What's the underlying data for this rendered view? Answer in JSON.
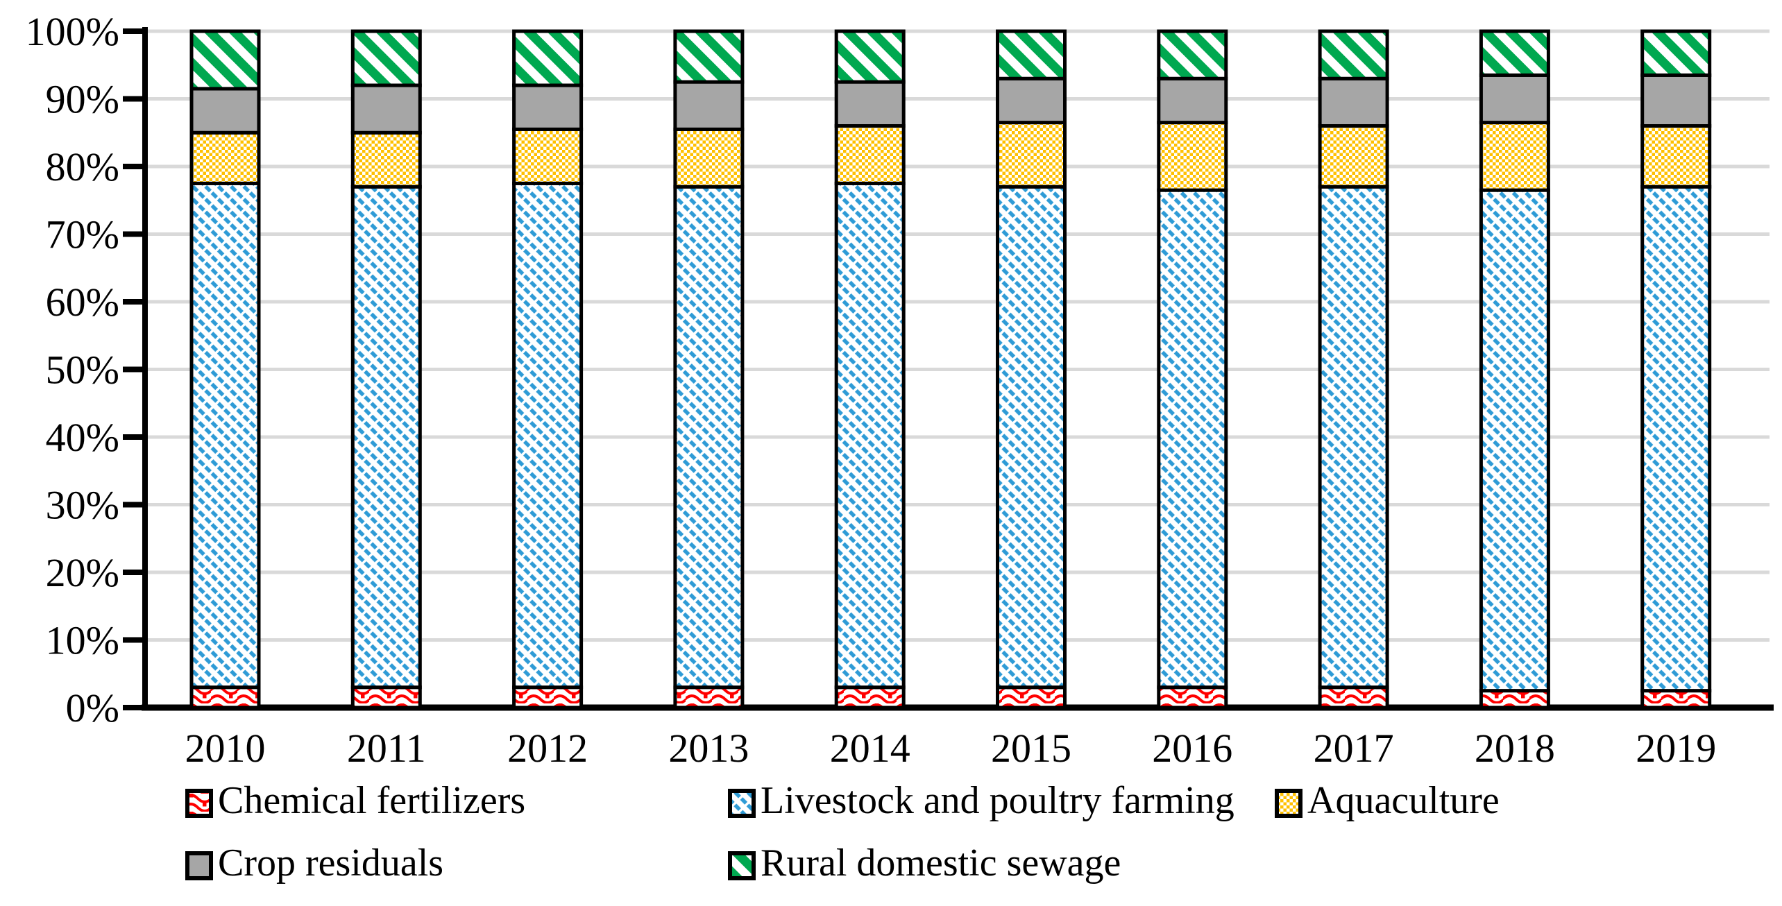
{
  "chart_data": {
    "type": "bar",
    "subtype": "100-percent-stacked",
    "title": "",
    "xlabel": "",
    "ylabel": "",
    "categories": [
      "2010",
      "2011",
      "2012",
      "2013",
      "2014",
      "2015",
      "2016",
      "2017",
      "2018",
      "2019"
    ],
    "series": [
      {
        "name": "Chemical fertilizers",
        "pattern": "red-wave",
        "color": "#FF0000",
        "values": [
          3.0,
          3.0,
          3.0,
          3.0,
          3.0,
          3.0,
          3.0,
          3.0,
          2.5,
          2.5
        ]
      },
      {
        "name": "Livestock and poultry farming",
        "pattern": "blue-diagonal",
        "color": "#2E9BD6",
        "values": [
          74.5,
          74.0,
          74.5,
          74.0,
          74.5,
          74.0,
          73.5,
          74.0,
          74.0,
          74.5
        ]
      },
      {
        "name": "Aquaculture",
        "pattern": "gold-checker",
        "color": "#FFC000",
        "values": [
          7.5,
          8.0,
          8.0,
          8.5,
          8.5,
          9.5,
          10.0,
          9.0,
          10.0,
          9.0
        ]
      },
      {
        "name": "Crop residuals",
        "pattern": "gray-solid",
        "color": "#A6A6A6",
        "values": [
          6.5,
          7.0,
          6.5,
          7.0,
          6.5,
          6.5,
          6.5,
          7.0,
          7.0,
          7.5
        ]
      },
      {
        "name": "Rural domestic sewage",
        "pattern": "green-diagonal",
        "color": "#00A850",
        "values": [
          8.5,
          8.0,
          8.0,
          7.5,
          7.5,
          7.0,
          7.0,
          7.0,
          6.5,
          6.5
        ]
      }
    ],
    "y_axis": {
      "min": 0,
      "max": 100,
      "unit": "%",
      "tick_labels": [
        "0%",
        "10%",
        "20%",
        "30%",
        "40%",
        "50%",
        "60%",
        "70%",
        "80%",
        "90%",
        "100%"
      ]
    },
    "grid": true,
    "legend_position": "bottom",
    "colors": {
      "background": "#FFFFFF",
      "gridline": "#D9D9D9",
      "axis": "#000000",
      "bar_border": "#000000"
    }
  },
  "legend": {
    "rows": [
      [
        "Chemical fertilizers",
        "Livestock and poultry farming",
        "Aquaculture"
      ],
      [
        "Crop residuals",
        "Rural domestic sewage"
      ]
    ]
  }
}
